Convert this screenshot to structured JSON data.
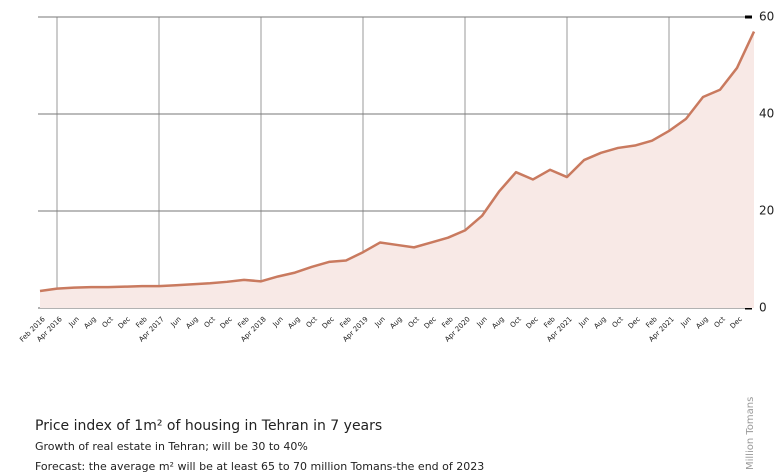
{
  "chart_data": {
    "type": "area",
    "title": "Price index of 1m² of housing in Tehran in 7 years",
    "subtitle": "Growth of real estate in Tehran; will be 30 to 40%",
    "note": "Forecast: the average m² will be at least 65 to 70 million Tomans-the end of 2023",
    "y_label": "Million Tomans",
    "categories": [
      "Feb 2016",
      "Apr 2016",
      "Jun",
      "Aug",
      "Oct",
      "Dec",
      "Feb",
      "Apr 2017",
      "Jun",
      "Aug",
      "Oct",
      "Dec",
      "Feb",
      "Apr 2018",
      "Jun",
      "Aug",
      "Oct",
      "Dec",
      "Feb",
      "Apr 2019",
      "Jun",
      "Aug",
      "Oct",
      "Dec",
      "Feb",
      "Apr 2020",
      "Jun",
      "Aug",
      "Oct",
      "Dec",
      "Feb",
      "Apr 2021",
      "Jun",
      "Aug",
      "Oct",
      "Dec",
      "Feb",
      "Apr 2021",
      "Jun",
      "Aug",
      "Oct",
      "Dec",
      null
    ],
    "values": [
      3.5,
      4.0,
      4.2,
      4.3,
      4.3,
      4.4,
      4.5,
      4.5,
      4.7,
      4.9,
      5.1,
      5.4,
      5.8,
      5.5,
      6.5,
      7.3,
      8.5,
      9.5,
      9.8,
      11.5,
      13.5,
      13.0,
      12.5,
      13.5,
      14.5,
      16.0,
      19.0,
      24.0,
      28.0,
      26.5,
      28.5,
      27.0,
      30.5,
      32.0,
      33.0,
      33.5,
      34.5,
      36.5,
      39.0,
      43.5,
      45.0,
      49.5,
      57.0
    ],
    "color": "#c97a5f",
    "fill": "#f8e9e6",
    "ylim": [
      0,
      60
    ],
    "yticks": [
      0,
      20,
      40,
      60
    ],
    "grid": true
  }
}
